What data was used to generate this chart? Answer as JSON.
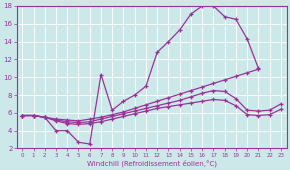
{
  "xlabel": "Windchill (Refroidissement éolien,°C)",
  "xlim": [
    -0.5,
    23.5
  ],
  "ylim": [
    2,
    18
  ],
  "yticks": [
    2,
    4,
    6,
    8,
    10,
    12,
    14,
    16,
    18
  ],
  "xticks": [
    0,
    1,
    2,
    3,
    4,
    5,
    6,
    7,
    8,
    9,
    10,
    11,
    12,
    13,
    14,
    15,
    16,
    17,
    18,
    19,
    20,
    21,
    22,
    23
  ],
  "background_color": "#cce8e8",
  "line_color": "#993399",
  "grid_color": "#aadddd",
  "lines": [
    {
      "x": [
        0,
        1,
        2,
        3,
        4,
        5,
        6,
        7,
        8,
        9,
        10,
        11,
        12,
        13,
        14,
        15,
        16,
        17,
        18,
        19,
        20,
        21
      ],
      "y": [
        5.7,
        5.7,
        5.5,
        4.0,
        4.0,
        2.7,
        2.5,
        10.3,
        6.3,
        7.3,
        8.0,
        9.0,
        12.8,
        14.0,
        15.3,
        17.1,
        18.0,
        18.0,
        16.8,
        16.5,
        14.3,
        11.0
      ]
    },
    {
      "x": [
        0,
        1,
        2,
        3,
        4,
        5,
        6,
        7,
        8,
        9,
        10,
        11,
        12,
        13,
        14,
        15,
        16,
        17,
        18,
        19,
        20,
        21
      ],
      "y": [
        5.7,
        5.7,
        5.5,
        5.3,
        5.2,
        5.1,
        5.3,
        5.5,
        5.8,
        6.1,
        6.5,
        6.9,
        7.3,
        7.7,
        8.1,
        8.5,
        8.9,
        9.3,
        9.7,
        10.1,
        10.5,
        10.9
      ]
    },
    {
      "x": [
        0,
        1,
        2,
        3,
        4,
        5,
        6,
        7,
        8,
        9,
        10,
        11,
        12,
        13,
        14,
        15,
        16,
        17,
        18,
        19,
        20,
        21,
        22,
        23
      ],
      "y": [
        5.7,
        5.7,
        5.5,
        5.2,
        5.0,
        4.9,
        5.0,
        5.3,
        5.6,
        5.9,
        6.2,
        6.5,
        6.8,
        7.1,
        7.4,
        7.8,
        8.2,
        8.5,
        8.4,
        7.6,
        6.3,
        6.2,
        6.3,
        7.0
      ]
    },
    {
      "x": [
        0,
        1,
        2,
        3,
        4,
        5,
        6,
        7,
        8,
        9,
        10,
        11,
        12,
        13,
        14,
        15,
        16,
        17,
        18,
        19,
        20,
        21,
        22,
        23
      ],
      "y": [
        5.7,
        5.7,
        5.5,
        5.1,
        4.8,
        4.7,
        4.8,
        5.0,
        5.3,
        5.6,
        5.9,
        6.2,
        6.5,
        6.7,
        6.9,
        7.1,
        7.3,
        7.5,
        7.4,
        6.8,
        5.8,
        5.7,
        5.8,
        6.4
      ]
    }
  ]
}
